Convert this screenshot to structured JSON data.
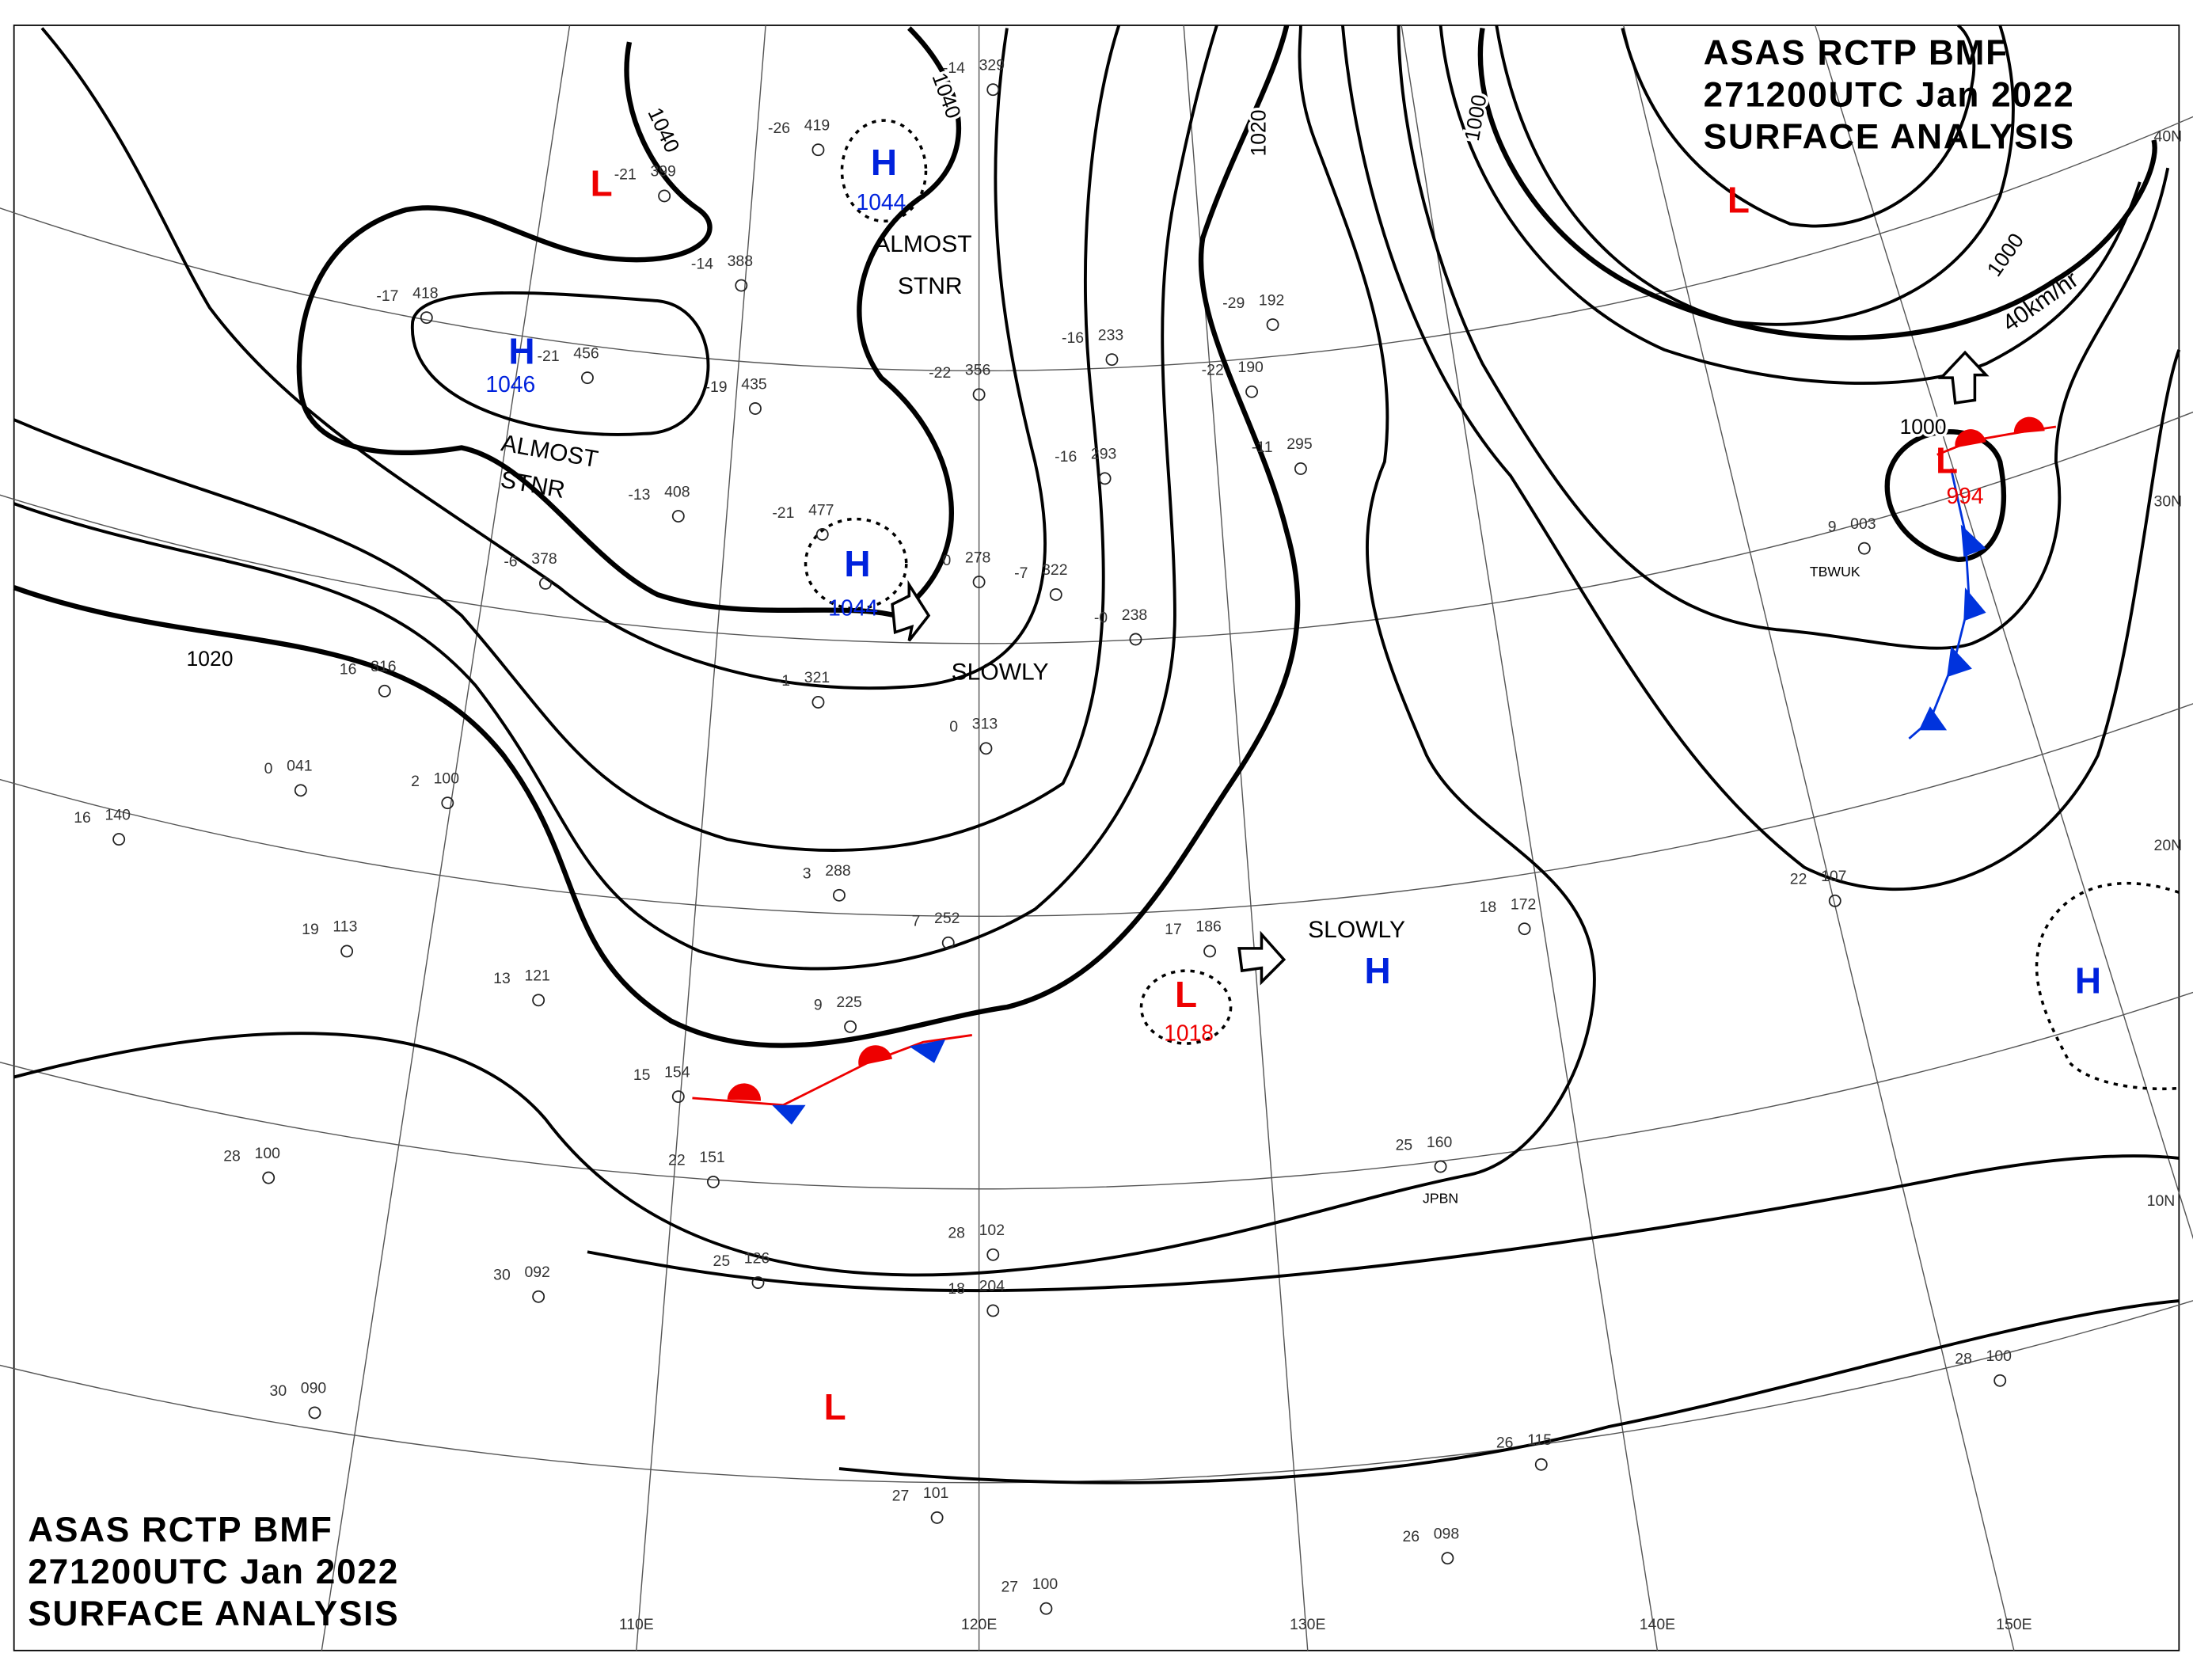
{
  "header": {
    "lines": [
      "ASAS    RCTP    BMF",
      "271200UTC   Jan   2022",
      "SURFACE  ANALYSIS"
    ]
  },
  "centers": [
    {
      "label": "L"
    },
    {
      "label": "H",
      "pressure": 1044
    },
    {
      "label": "H",
      "pressure": 1046
    },
    {
      "label": "H",
      "pressure": 1044
    },
    {
      "label": "L"
    },
    {
      "label": "L",
      "pressure": 994
    },
    {
      "label": "L",
      "pressure": 1018
    },
    {
      "label": "H"
    },
    {
      "label": "H"
    },
    {
      "label": "L"
    }
  ],
  "isobar_labels": [
    1040,
    1040,
    1020,
    1000,
    1000,
    1000,
    1020
  ],
  "annotations": [
    "ALMOST",
    "STNR",
    "ALMOST",
    "STNR",
    "SLOWLY",
    "SLOWLY",
    "40km/hr",
    "TBWUK",
    "JPBN"
  ],
  "longitudes": [
    "110E",
    "120E",
    "130E",
    "140E",
    "150E"
  ],
  "latitudes": [
    "40N",
    "30N",
    "20N",
    "10N"
  ],
  "stations": [
    {
      "temp": "-26",
      "pres": "419"
    },
    {
      "temp": "-14",
      "pres": "329"
    },
    {
      "temp": "-21",
      "pres": "399"
    },
    {
      "temp": "-14",
      "pres": "388"
    },
    {
      "temp": "-17",
      "pres": "418"
    },
    {
      "temp": "-21",
      "pres": "456"
    },
    {
      "temp": "-19",
      "pres": "435"
    },
    {
      "temp": "-22",
      "pres": "356"
    },
    {
      "temp": "-16",
      "pres": "233"
    },
    {
      "temp": "-29",
      "pres": "192"
    },
    {
      "temp": "-22",
      "pres": "190"
    },
    {
      "temp": "-11",
      "pres": "295"
    },
    {
      "temp": "-16",
      "pres": "293"
    },
    {
      "temp": "-13",
      "pres": "408"
    },
    {
      "temp": "-21",
      "pres": "477"
    },
    {
      "temp": "-6",
      "pres": "378"
    },
    {
      "temp": "0",
      "pres": "278"
    },
    {
      "temp": "-7",
      "pres": "322"
    },
    {
      "temp": "-0",
      "pres": "238"
    },
    {
      "temp": "16",
      "pres": "316"
    },
    {
      "temp": "-1",
      "pres": "321"
    },
    {
      "temp": "0",
      "pres": "313"
    },
    {
      "temp": "0",
      "pres": "041"
    },
    {
      "temp": "2",
      "pres": "100"
    },
    {
      "temp": "16",
      "pres": "140"
    },
    {
      "temp": "3",
      "pres": "288"
    },
    {
      "temp": "7",
      "pres": "252"
    },
    {
      "temp": "19",
      "pres": "113"
    },
    {
      "temp": "17",
      "pres": "186"
    },
    {
      "temp": "13",
      "pres": "121"
    },
    {
      "temp": "9",
      "pres": "225"
    },
    {
      "temp": "15",
      "pres": "154"
    },
    {
      "temp": "22",
      "pres": "151"
    },
    {
      "temp": "28",
      "pres": "100"
    },
    {
      "temp": "25",
      "pres": "126"
    },
    {
      "temp": "30",
      "pres": "092"
    },
    {
      "temp": "30",
      "pres": "090"
    },
    {
      "temp": "28",
      "pres": "102"
    },
    {
      "temp": "18",
      "pres": "204"
    },
    {
      "temp": "18",
      "pres": "172"
    },
    {
      "temp": "25",
      "pres": "160"
    },
    {
      "temp": "26",
      "pres": "098"
    },
    {
      "temp": "26",
      "pres": "115"
    },
    {
      "temp": "28",
      "pres": "100"
    },
    {
      "temp": "27",
      "pres": "101"
    },
    {
      "temp": "27",
      "pres": "100"
    },
    {
      "temp": "22",
      "pres": "107"
    },
    {
      "temp": "9",
      "pres": "003"
    }
  ]
}
